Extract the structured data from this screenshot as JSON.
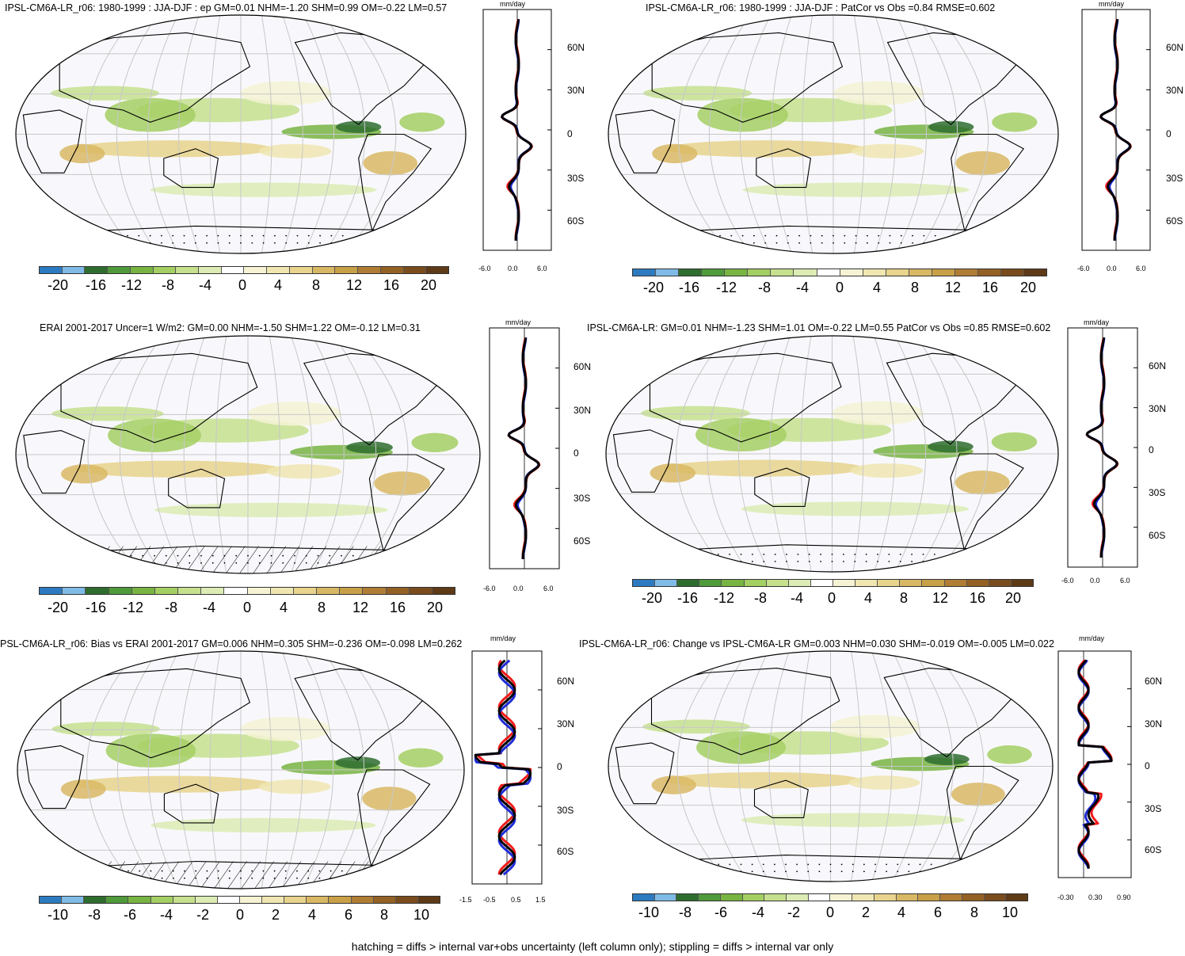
{
  "palette": [
    "#2c7bc0",
    "#7fbbe6",
    "#2f6d2f",
    "#4f9a3a",
    "#78b442",
    "#a4cf63",
    "#c6e08e",
    "#dcecb4",
    "#ffffff",
    "#f5f3d4",
    "#f0e6b2",
    "#e8d48c",
    "#d9b865",
    "#c8a048",
    "#b07d35",
    "#946124",
    "#7a4c1d",
    "#5e3a17"
  ],
  "marker_colors": {
    "blue": "#1f2bd6",
    "red": "#f21a1a",
    "black": "#000000"
  },
  "panels": [
    {
      "title": "IPSL-CM6A-LR_r06: 1980-1999 : JJA-DJF : ep GM=0.01 NHM=-1.20 SHM=0.99 OM=-0.22 LM=0.57",
      "unit": "mm/day",
      "lat_labels": [
        "60N",
        "30N",
        "0",
        "30S",
        "60S"
      ],
      "x_ticks": [
        "-6.0",
        "0.0",
        "6.0"
      ],
      "colorbar": [
        "-20",
        "-16",
        "-12",
        "-8",
        "-4",
        "0",
        "4",
        "8",
        "12",
        "16",
        "20"
      ],
      "hatch": true
    },
    {
      "title": "IPSL-CM6A-LR_r06: 1980-1999 : JJA-DJF : PatCor vs Obs =0.84 RMSE=0.602",
      "unit": "mm/day",
      "lat_labels": [
        "60N",
        "30N",
        "0",
        "30S",
        "60S"
      ],
      "x_ticks": [
        "-6.0",
        "0.0",
        "6.0"
      ],
      "colorbar": [
        "-20",
        "-16",
        "-12",
        "-8",
        "-4",
        "0",
        "4",
        "8",
        "12",
        "16",
        "20"
      ],
      "hatch": false
    },
    {
      "title": "ERAI 2001-2017 Uncer=1 W/m2: GM=0.00 NHM=-1.50 SHM=1.22 OM=-0.12 LM=0.31",
      "unit": "mm/day",
      "lat_labels": [
        "60N",
        "30N",
        "0",
        "30S",
        "60S"
      ],
      "x_ticks": [
        "-6.0",
        "0.0",
        "6.0"
      ],
      "colorbar": [
        "-20",
        "-16",
        "-12",
        "-8",
        "-4",
        "0",
        "4",
        "8",
        "12",
        "16",
        "20"
      ],
      "hatch": true
    },
    {
      "title": "IPSL-CM6A-LR: GM=0.01 NHM=-1.23 SHM=1.01 OM=-0.22 LM=0.55 PatCor vs Obs =0.85 RMSE=0.602",
      "unit": "mm/day",
      "lat_labels": [
        "60N",
        "30N",
        "0",
        "30S",
        "60S"
      ],
      "x_ticks": [
        "-6.0",
        "0.0",
        "6.0"
      ],
      "colorbar": [
        "-20",
        "-16",
        "-12",
        "-8",
        "-4",
        "0",
        "4",
        "8",
        "12",
        "16",
        "20"
      ],
      "hatch": false
    },
    {
      "title": "PSL-CM6A-LR_r06: Bias vs ERAI 2001-2017 GM=0.006 NHM=0.305 SHM=-0.236 OM=-0.098 LM=0.262",
      "unit": "mm/day",
      "lat_labels": [
        "60N",
        "30N",
        "0",
        "30S",
        "60S"
      ],
      "x_ticks": [
        "-1.5",
        "-0.5",
        "0.5",
        "1.5"
      ],
      "colorbar": [
        "-10",
        "-8",
        "-6",
        "-4",
        "-2",
        "0",
        "2",
        "4",
        "6",
        "8",
        "10"
      ],
      "hatch": true
    },
    {
      "title": "IPSL-CM6A-LR_r06: Change vs IPSL-CM6A-LR GM=0.003 NHM=0.030 SHM=-0.019 OM=-0.005 LM=0.022",
      "unit": "mm/day",
      "lat_labels": [
        "60N",
        "30N",
        "0",
        "30S",
        "60S"
      ],
      "x_ticks": [
        "-0.30",
        "0.30",
        "0.90"
      ],
      "colorbar": [
        "-10",
        "-8",
        "-6",
        "-4",
        "-2",
        "0",
        "2",
        "4",
        "6",
        "8",
        "10"
      ],
      "hatch": false
    }
  ],
  "footer": "hatching = diffs > internal var+obs uncertainty (left column only); stippling = diffs > internal var only"
}
